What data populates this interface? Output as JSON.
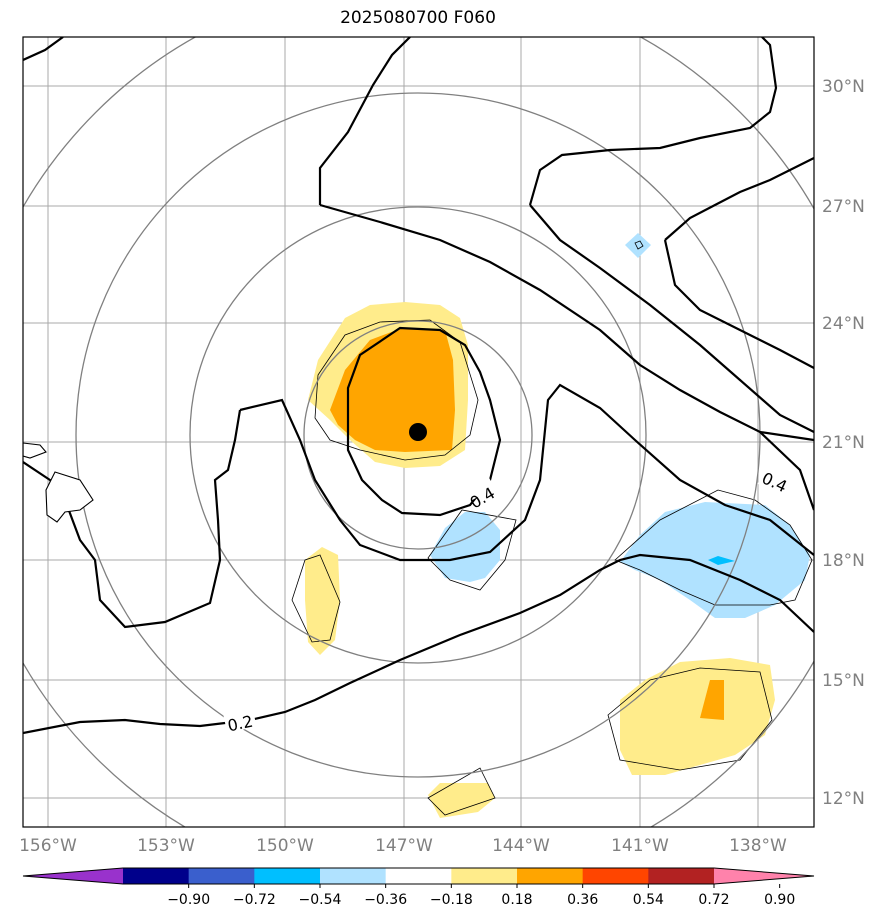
{
  "title": "2025080700 F060",
  "map": {
    "lon_ticks": [
      "156°W",
      "153°W",
      "150°W",
      "147°W",
      "144°W",
      "141°W",
      "138°W"
    ],
    "lat_ticks": [
      "30°N",
      "27°N",
      "24°N",
      "21°N",
      "18°N",
      "15°N",
      "12°N"
    ],
    "contour_labels": [
      "0.4",
      "0.4",
      "0.2"
    ]
  },
  "colorbar": {
    "labels": [
      "−0.90",
      "−0.72",
      "−0.54",
      "−0.36",
      "−0.18",
      "0.18",
      "0.36",
      "0.54",
      "0.72",
      "0.90"
    ],
    "colors": [
      "#9932cc",
      "#00008b",
      "#3a5fcd",
      "#00bfff",
      "#b0e2ff",
      "#ffffff",
      "#ffec8b",
      "#ffa500",
      "#ff4500",
      "#b22222",
      "#ff82ab"
    ]
  }
}
